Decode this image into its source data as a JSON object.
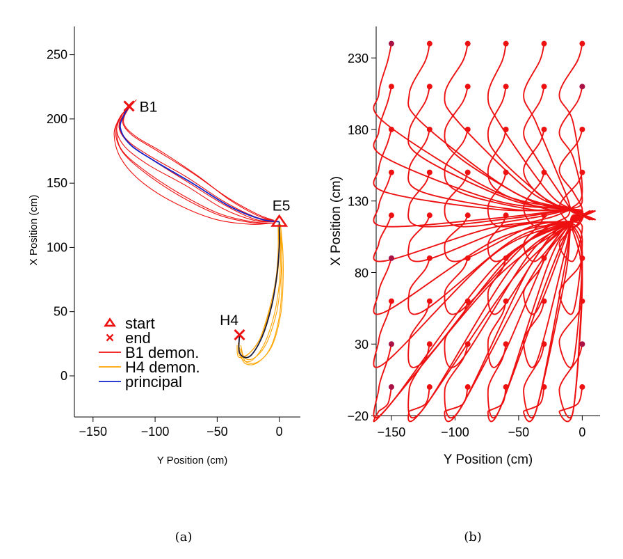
{
  "chart_data": [
    {
      "panel": "a",
      "type": "line",
      "caption": "(a)",
      "xlabel": "Y Position (cm)",
      "ylabel": "X Position (cm)",
      "xlim": [
        -165,
        17
      ],
      "ylim": [
        -32,
        272
      ],
      "xticks": [
        -150,
        -100,
        -50,
        0
      ],
      "yticks": [
        0,
        50,
        100,
        150,
        200,
        250
      ],
      "grid": false,
      "legend_position": "bottom-left",
      "legend": [
        {
          "name": "start",
          "marker": "triangle",
          "color": "#ee1111"
        },
        {
          "name": "end",
          "marker": "x",
          "color": "#ee1111"
        },
        {
          "name": "B1 demon.",
          "marker": "line",
          "color": "#ee1111"
        },
        {
          "name": "H4 demon.",
          "marker": "line",
          "color": "#ffa500"
        },
        {
          "name": "principal",
          "marker": "line",
          "color": "#1122cc"
        }
      ],
      "markers": [
        {
          "label": "E5",
          "type": "start",
          "x": 0,
          "y": 120
        },
        {
          "label": "B1",
          "type": "end",
          "x": -121,
          "y": 210
        },
        {
          "label": "H4",
          "type": "end",
          "x": -32,
          "y": 32
        }
      ],
      "principal_b1": [
        [
          0,
          120
        ],
        [
          -15,
          122
        ],
        [
          -40,
          132
        ],
        [
          -70,
          150
        ],
        [
          -100,
          167
        ],
        [
          -120,
          180
        ],
        [
          -128,
          193
        ],
        [
          -125,
          203
        ],
        [
          -121,
          210
        ]
      ],
      "principal_h4": [
        [
          0,
          120
        ],
        [
          0,
          100
        ],
        [
          -2,
          78
        ],
        [
          -6,
          55
        ],
        [
          -14,
          30
        ],
        [
          -24,
          15
        ],
        [
          -32,
          18
        ],
        [
          -32,
          32
        ]
      ],
      "b1_demos": [
        [
          [
            -5,
            120
          ],
          [
            -20,
            121
          ],
          [
            -45,
            130
          ],
          [
            -75,
            148
          ],
          [
            -105,
            164
          ],
          [
            -124,
            178
          ],
          [
            -131,
            192
          ],
          [
            -126,
            204
          ],
          [
            -119,
            213
          ]
        ],
        [
          [
            -5,
            121
          ],
          [
            -20,
            124
          ],
          [
            -45,
            136
          ],
          [
            -75,
            155
          ],
          [
            -104,
            171
          ],
          [
            -122,
            183
          ],
          [
            -129,
            195
          ],
          [
            -124,
            205
          ],
          [
            -117,
            214
          ]
        ],
        [
          [
            -4,
            119
          ],
          [
            -20,
            119
          ],
          [
            -48,
            125
          ],
          [
            -80,
            140
          ],
          [
            -108,
            158
          ],
          [
            -126,
            174
          ],
          [
            -132,
            190
          ],
          [
            -128,
            202
          ],
          [
            -122,
            208
          ]
        ],
        [
          [
            -4,
            121
          ],
          [
            -18,
            126
          ],
          [
            -42,
            139
          ],
          [
            -70,
            158
          ],
          [
            -98,
            175
          ],
          [
            -118,
            187
          ],
          [
            -126,
            197
          ],
          [
            -122,
            207
          ],
          [
            -115,
            215
          ]
        ],
        [
          [
            -6,
            119
          ],
          [
            -22,
            118
          ],
          [
            -52,
            122
          ],
          [
            -85,
            135
          ],
          [
            -112,
            152
          ],
          [
            -128,
            170
          ],
          [
            -133,
            188
          ],
          [
            -129,
            200
          ],
          [
            -124,
            206
          ]
        ],
        [
          [
            -5,
            120
          ],
          [
            -20,
            122
          ],
          [
            -44,
            133
          ],
          [
            -74,
            151
          ],
          [
            -102,
            168
          ],
          [
            -121,
            181
          ],
          [
            -129,
            193
          ],
          [
            -125,
            204
          ],
          [
            -120,
            211
          ]
        ],
        [
          [
            -5,
            121
          ],
          [
            -18,
            125
          ],
          [
            -40,
            137
          ],
          [
            -66,
            156
          ],
          [
            -94,
            174
          ],
          [
            -115,
            186
          ],
          [
            -125,
            196
          ],
          [
            -123,
            206
          ],
          [
            -117,
            213
          ]
        ],
        [
          [
            -4,
            119
          ],
          [
            -22,
            120
          ],
          [
            -50,
            127
          ],
          [
            -82,
            143
          ],
          [
            -110,
            161
          ],
          [
            -127,
            176
          ],
          [
            -131,
            191
          ],
          [
            -127,
            203
          ],
          [
            -121,
            209
          ]
        ]
      ],
      "h4_demos": [
        [
          [
            0,
            118
          ],
          [
            1,
            95
          ],
          [
            0,
            72
          ],
          [
            -4,
            48
          ],
          [
            -12,
            25
          ],
          [
            -22,
            12
          ],
          [
            -30,
            13
          ],
          [
            -32,
            22
          ]
        ],
        [
          [
            1,
            118
          ],
          [
            2,
            96
          ],
          [
            1,
            73
          ],
          [
            -2,
            50
          ],
          [
            -10,
            26
          ],
          [
            -20,
            14
          ],
          [
            -28,
            14
          ],
          [
            -31,
            24
          ]
        ],
        [
          [
            -1,
            118
          ],
          [
            -1,
            96
          ],
          [
            -3,
            74
          ],
          [
            -8,
            52
          ],
          [
            -16,
            28
          ],
          [
            -26,
            16
          ],
          [
            -33,
            15
          ],
          [
            -34,
            24
          ]
        ],
        [
          [
            0,
            118
          ],
          [
            2,
            94
          ],
          [
            2,
            70
          ],
          [
            0,
            46
          ],
          [
            -7,
            22
          ],
          [
            -18,
            10
          ],
          [
            -28,
            10
          ],
          [
            -32,
            20
          ]
        ],
        [
          [
            -1,
            118
          ],
          [
            0,
            97
          ],
          [
            -2,
            75
          ],
          [
            -7,
            53
          ],
          [
            -15,
            30
          ],
          [
            -25,
            17
          ],
          [
            -32,
            16
          ],
          [
            -33,
            26
          ]
        ],
        [
          [
            1,
            118
          ],
          [
            3,
            95
          ],
          [
            3,
            71
          ],
          [
            1,
            47
          ],
          [
            -6,
            23
          ],
          [
            -17,
            11
          ],
          [
            -27,
            11
          ],
          [
            -31,
            21
          ]
        ]
      ]
    },
    {
      "panel": "b",
      "type": "line",
      "caption": "(b)",
      "xlabel": "Y Position (cm)",
      "ylabel": "X Position (cm)",
      "xlim": [
        -162,
        14
      ],
      "ylim": [
        -20,
        252
      ],
      "xticks": [
        -150,
        -100,
        -50,
        0
      ],
      "yticks": [
        -20,
        30,
        80,
        130,
        180,
        230
      ],
      "grid": false,
      "target": [
        0,
        120
      ],
      "start_x": [
        -150,
        -120,
        -90,
        -60,
        -30,
        0
      ],
      "start_y": [
        0,
        30,
        60,
        90,
        120,
        150,
        180,
        210,
        240
      ],
      "line_color": "#ee1111",
      "start_point_colors": {
        "default": "#ee1111",
        "corner": "#aa1144"
      }
    }
  ]
}
